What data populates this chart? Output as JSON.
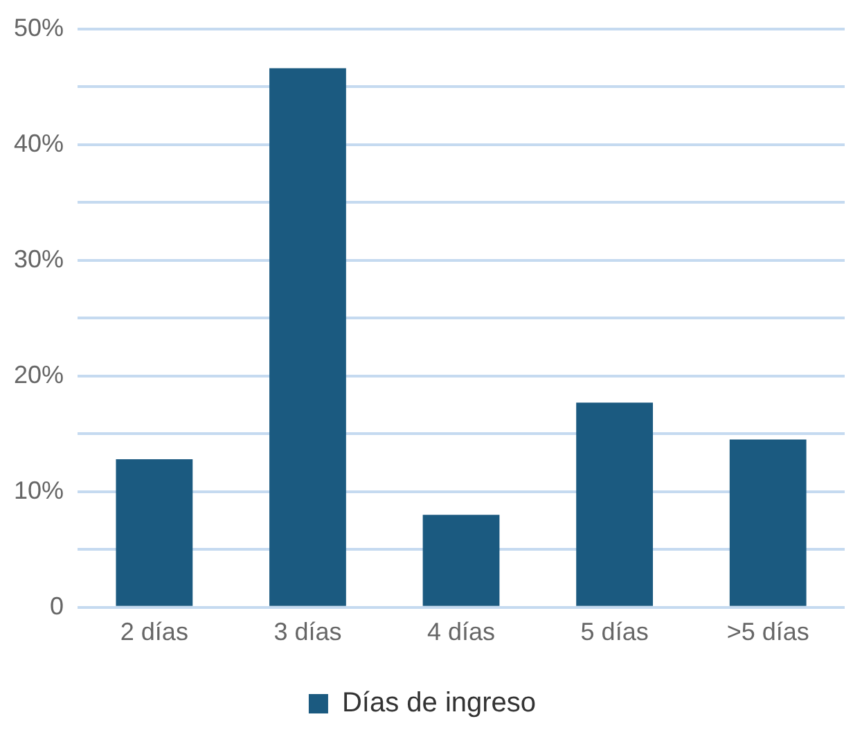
{
  "chart_data": {
    "type": "bar",
    "categories": [
      "2 días",
      "3 días",
      "4 días",
      "5 días",
      ">5 días"
    ],
    "series": [
      {
        "name": "Días de ingreso",
        "color": "#1b5a80",
        "values": [
          12.8,
          46.6,
          8.0,
          17.7,
          14.5
        ]
      }
    ],
    "ylim": [
      0,
      50
    ],
    "yticks": [
      {
        "value": 0,
        "label": "0"
      },
      {
        "value": 5,
        "label": null
      },
      {
        "value": 10,
        "label": "10%"
      },
      {
        "value": 15,
        "label": null
      },
      {
        "value": 20,
        "label": "20%"
      },
      {
        "value": 25,
        "label": null
      },
      {
        "value": 30,
        "label": "30%"
      },
      {
        "value": 35,
        "label": null
      },
      {
        "value": 40,
        "label": "40%"
      },
      {
        "value": 45,
        "label": null
      },
      {
        "value": 50,
        "label": "50%"
      }
    ],
    "grid": "y",
    "legend": "bottom"
  }
}
